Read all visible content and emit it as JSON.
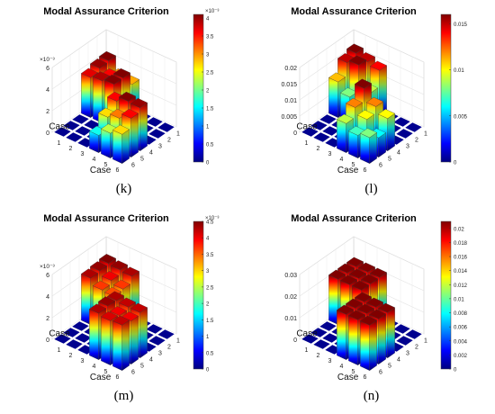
{
  "chart_data": [
    {
      "type": "bar3d",
      "title": "Modal Assurance Criterion",
      "panel_label": "(k)",
      "x_categories": [
        "1",
        "2",
        "3",
        "4",
        "5",
        "6"
      ],
      "y_categories": [
        "1",
        "2",
        "3",
        "4",
        "5",
        "6"
      ],
      "xlabel": "Case",
      "ylabel": "Case",
      "zlim": [
        0,
        0.006
      ],
      "z_tick_labels": [
        "0",
        "2",
        "4",
        "6"
      ],
      "z_exponent": "×10⁻³",
      "colorbar": {
        "clim": [
          0,
          0.0041
        ],
        "tick_labels": [
          "0",
          "0.5",
          "1",
          "1.5",
          "2",
          "2.5",
          "3",
          "3.5",
          "4"
        ],
        "exponent": "×10⁻³"
      },
      "values": [
        [
          0.0041,
          0.003,
          0.0029,
          0.0,
          0.0,
          0.0
        ],
        [
          0.004,
          0.0036,
          0.0041,
          0.0,
          0.0,
          0.0
        ],
        [
          0.0037,
          0.0039,
          0.0041,
          0.0,
          0.0,
          0.0
        ],
        [
          0.0,
          0.0,
          0.0,
          0.0036,
          0.0041,
          0.004
        ],
        [
          0.0,
          0.0,
          0.0,
          0.0027,
          0.0031,
          0.0036
        ],
        [
          0.0,
          0.0,
          0.0,
          0.0016,
          0.0023,
          0.0027
        ]
      ]
    },
    {
      "type": "bar3d",
      "title": "Modal Assurance Criterion",
      "panel_label": "(l)",
      "x_categories": [
        "1",
        "2",
        "3",
        "4",
        "5",
        "6"
      ],
      "y_categories": [
        "1",
        "2",
        "3",
        "4",
        "5",
        "6"
      ],
      "xlabel": "Case",
      "ylabel": "Case",
      "zlim": [
        0,
        0.02
      ],
      "z_tick_labels": [
        "0",
        "0.005",
        "0.01",
        "0.015",
        "0.02"
      ],
      "z_exponent": "",
      "colorbar": {
        "clim": [
          0,
          0.016
        ],
        "tick_labels": [
          "0",
          "0.005",
          "0.01",
          "0.015"
        ],
        "exponent": ""
      },
      "values": [
        [
          0.016,
          0.015,
          0.014,
          0.0,
          0.0,
          0.0
        ],
        [
          0.015,
          0.016,
          0.009,
          0.0,
          0.0,
          0.0
        ],
        [
          0.011,
          0.008,
          0.003,
          0.0,
          0.0,
          0.0
        ],
        [
          0.0,
          0.0,
          0.0,
          0.016,
          0.012,
          0.01
        ],
        [
          0.0,
          0.0,
          0.0,
          0.012,
          0.01,
          0.006
        ],
        [
          0.0,
          0.0,
          0.0,
          0.009,
          0.007,
          0.008
        ]
      ]
    },
    {
      "type": "bar3d",
      "title": "Modal Assurance Criterion",
      "panel_label": "(m)",
      "x_categories": [
        "1",
        "2",
        "3",
        "4",
        "5",
        "6"
      ],
      "y_categories": [
        "1",
        "2",
        "3",
        "4",
        "5",
        "6"
      ],
      "xlabel": "Case",
      "ylabel": "Case",
      "zlim": [
        0,
        0.006
      ],
      "z_tick_labels": [
        "0",
        "2",
        "4",
        "6"
      ],
      "z_exponent": "×10⁻³",
      "colorbar": {
        "clim": [
          0,
          0.0045
        ],
        "tick_labels": [
          "0",
          "0.5",
          "1",
          "1.5",
          "2",
          "2.5",
          "3",
          "3.5",
          "4",
          "4.5"
        ],
        "exponent": "×10⁻³"
      },
      "values": [
        [
          0.0045,
          0.0044,
          0.0043,
          0.0,
          0.0,
          0.0
        ],
        [
          0.0044,
          0.004,
          0.0037,
          0.0,
          0.0,
          0.0
        ],
        [
          0.0043,
          0.0037,
          0.0036,
          0.0,
          0.0,
          0.0
        ],
        [
          0.0,
          0.0,
          0.0,
          0.0043,
          0.0042,
          0.0042
        ],
        [
          0.0,
          0.0,
          0.0,
          0.0044,
          0.004,
          0.004
        ],
        [
          0.0,
          0.0,
          0.0,
          0.0043,
          0.0041,
          0.0042
        ]
      ]
    },
    {
      "type": "bar3d",
      "title": "Modal Assurance Criterion",
      "panel_label": "(n)",
      "x_categories": [
        "1",
        "2",
        "3",
        "4",
        "5",
        "6"
      ],
      "y_categories": [
        "1",
        "2",
        "3",
        "4",
        "5",
        "6"
      ],
      "xlabel": "Case",
      "ylabel": "Case",
      "zlim": [
        0,
        0.03
      ],
      "z_tick_labels": [
        "0",
        "0.01",
        "0.02",
        "0.03"
      ],
      "z_exponent": "",
      "colorbar": {
        "clim": [
          0,
          0.021
        ],
        "tick_labels": [
          "0",
          "0.002",
          "0.004",
          "0.006",
          "0.008",
          "0.01",
          "0.012",
          "0.014",
          "0.016",
          "0.018",
          "0.02"
        ],
        "exponent": ""
      },
      "values": [
        [
          0.021,
          0.021,
          0.021,
          0.0,
          0.0,
          0.0
        ],
        [
          0.021,
          0.021,
          0.021,
          0.0,
          0.0,
          0.0
        ],
        [
          0.021,
          0.021,
          0.021,
          0.0,
          0.0,
          0.0
        ],
        [
          0.0,
          0.0,
          0.0,
          0.021,
          0.021,
          0.021
        ],
        [
          0.0,
          0.0,
          0.0,
          0.021,
          0.021,
          0.021
        ],
        [
          0.0,
          0.0,
          0.0,
          0.021,
          0.021,
          0.021
        ]
      ]
    }
  ]
}
